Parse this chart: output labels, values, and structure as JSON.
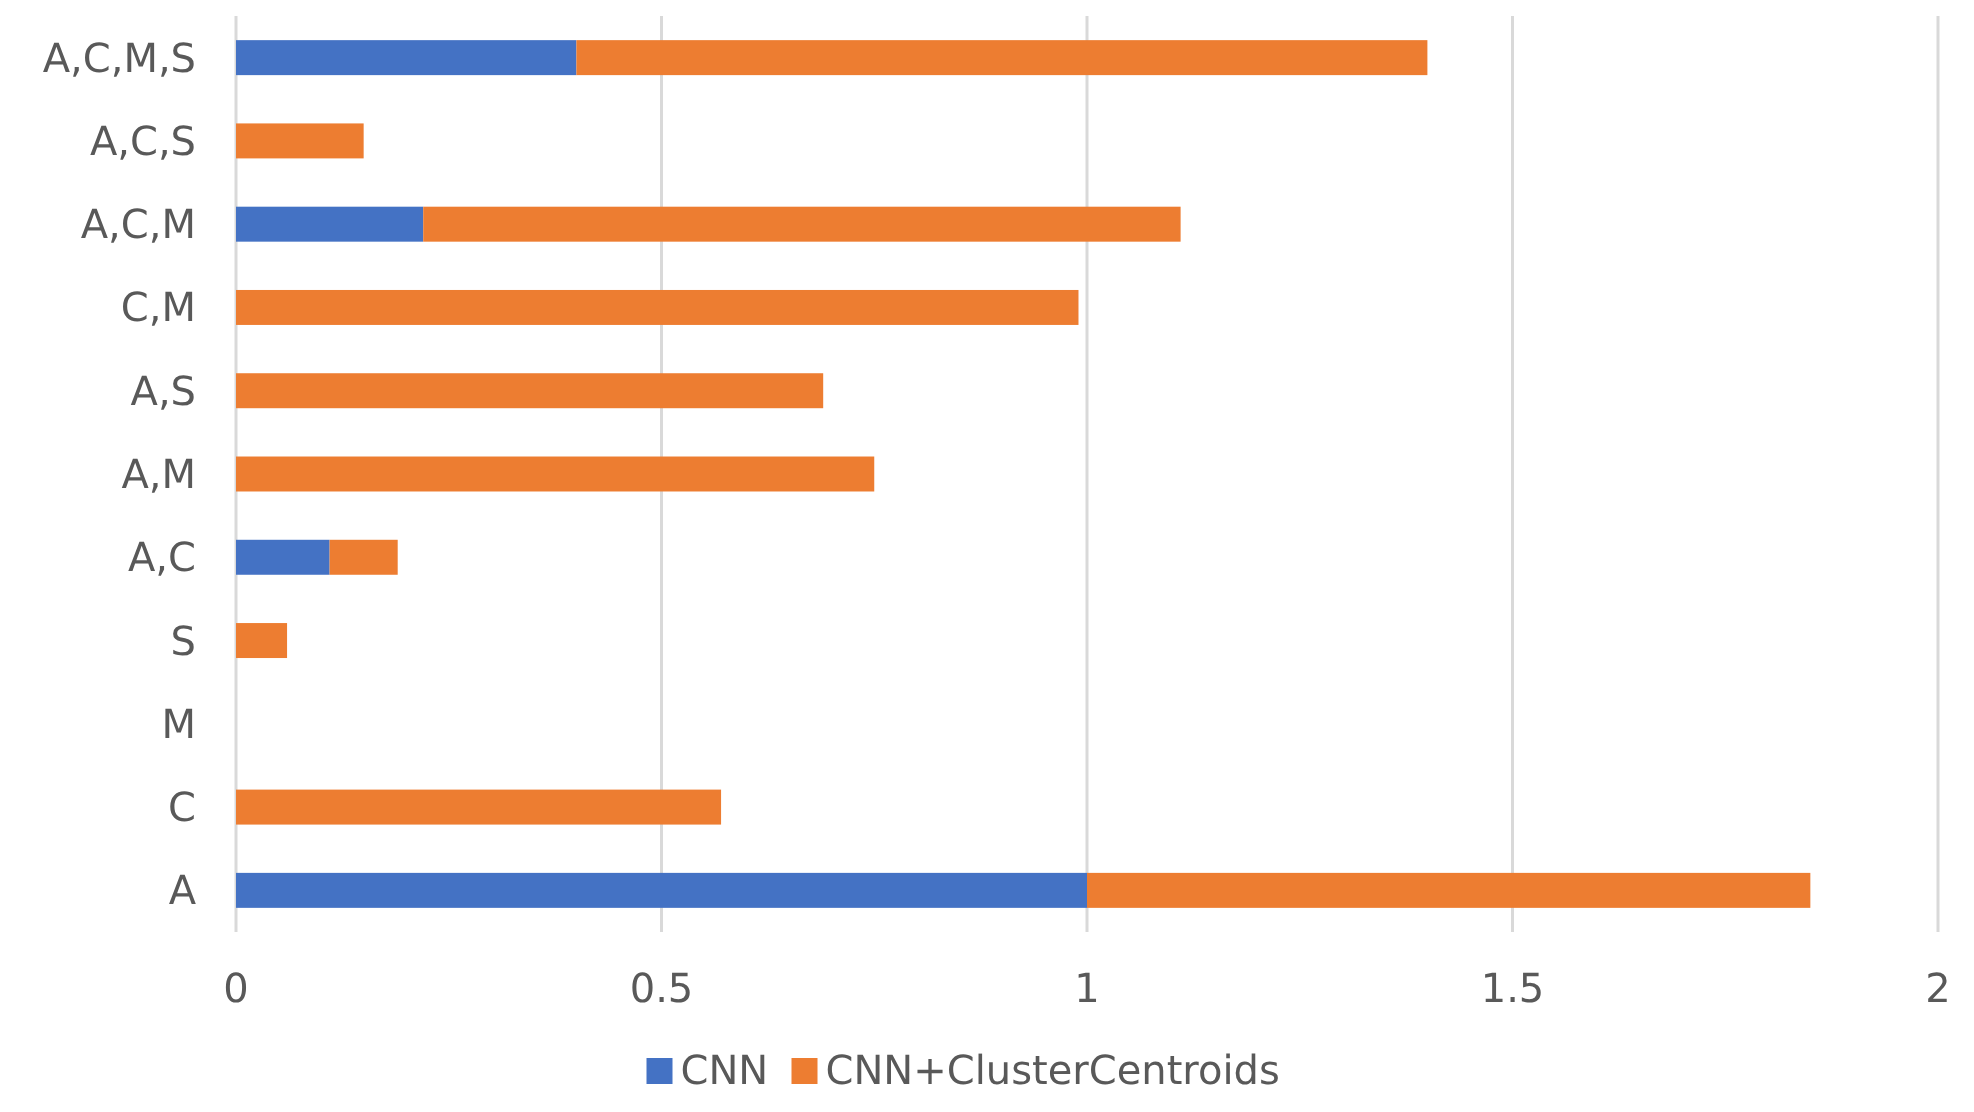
{
  "chart_data": {
    "type": "bar",
    "orientation": "horizontal",
    "stacked": true,
    "categories": [
      "A,C,M,S",
      "A,C,S",
      "A,C,M",
      "C,M",
      "A,S",
      "A,M",
      "A,C",
      "S",
      "M",
      "C",
      "A"
    ],
    "series": [
      {
        "name": "CNN",
        "color": "#4472c4",
        "values": [
          0.4,
          0,
          0.22,
          0,
          0,
          0,
          0.11,
          0,
          0,
          0,
          1.0
        ]
      },
      {
        "name": "CNN+ClusterCentroids",
        "color": "#ed7d31",
        "values": [
          1.0,
          0.15,
          0.89,
          0.99,
          0.69,
          0.75,
          0.08,
          0.06,
          0,
          0.57,
          0.85
        ]
      }
    ],
    "xlim": [
      0,
      2
    ],
    "xticks": [
      0,
      0.5,
      1,
      1.5,
      2
    ],
    "grid": "x",
    "legend": "bottom"
  }
}
